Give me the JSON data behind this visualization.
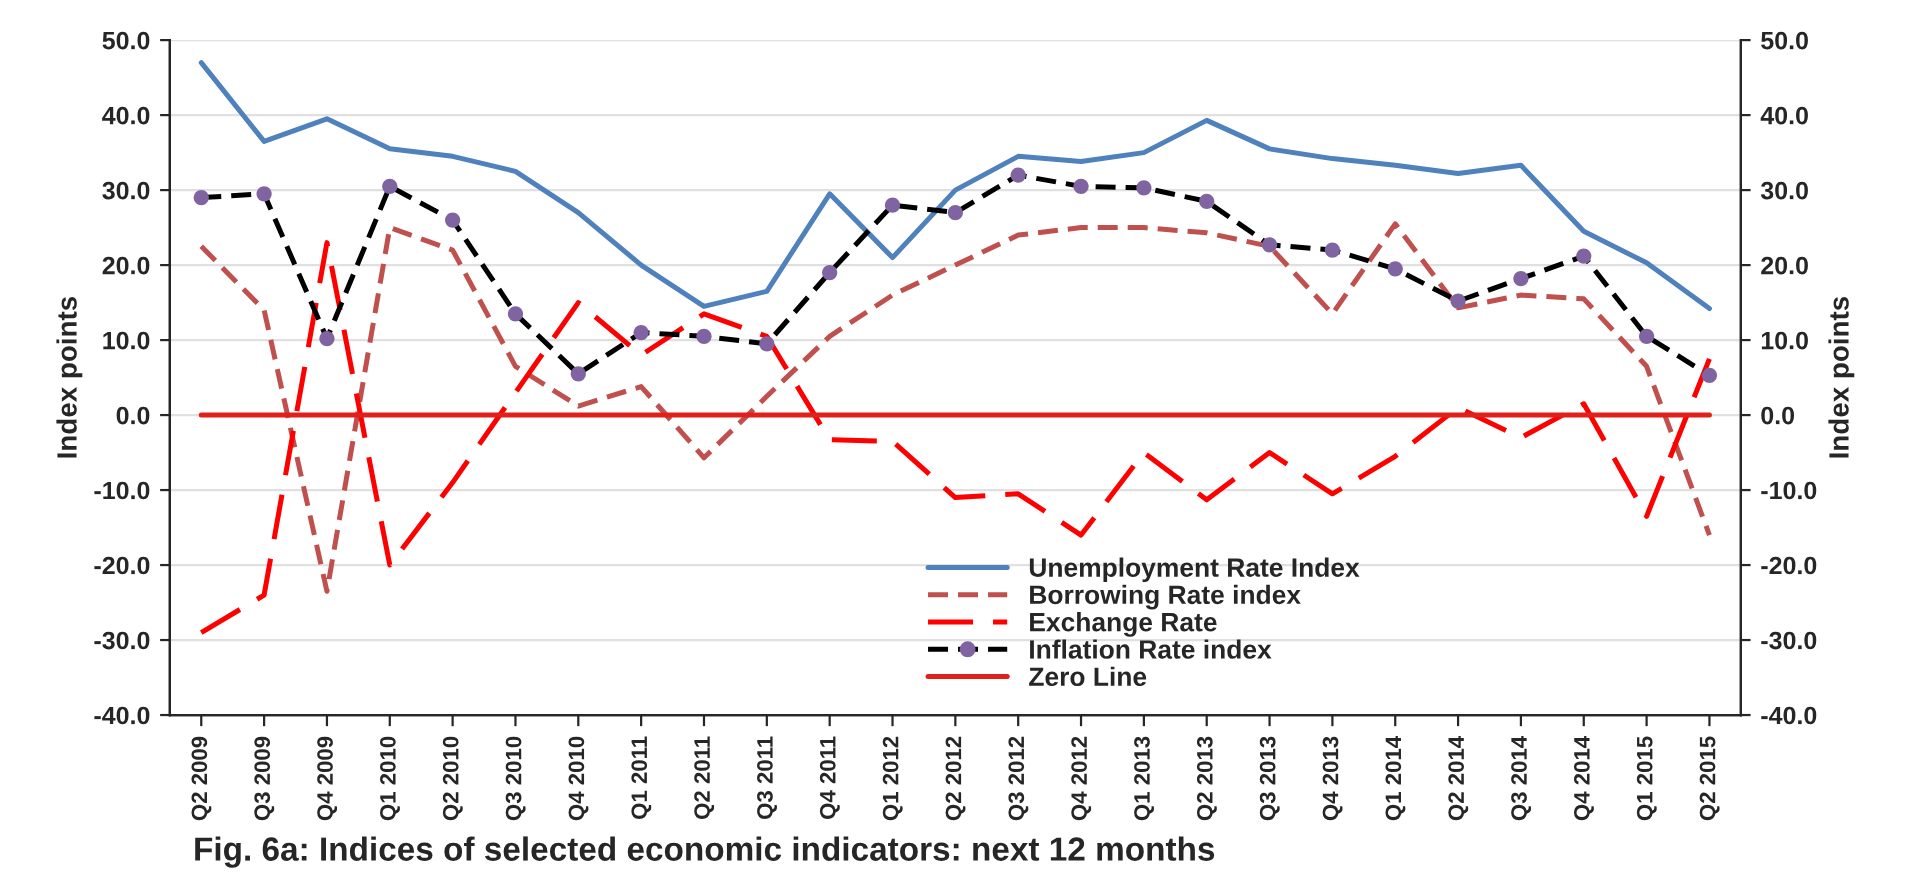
{
  "chart_data": {
    "type": "line",
    "categories": [
      "Q2 2009",
      "Q3 2009",
      "Q4 2009",
      "Q1 2010",
      "Q2 2010",
      "Q3 2010",
      "Q4 2010",
      "Q1 2011",
      "Q2 2011",
      "Q3 2011",
      "Q4 2011",
      "Q1 2012",
      "Q2 2012",
      "Q3 2012",
      "Q4 2012",
      "Q1 2013",
      "Q2 2013",
      "Q3 2013",
      "Q4 2013",
      "Q1 2014",
      "Q2 2014",
      "Q3 2014",
      "Q4 2014",
      "Q1 2015",
      "Q2 2015"
    ],
    "series": [
      {
        "name": "Unemployment Rate Index",
        "color": "#4f81bd",
        "line_style": "solid",
        "marker": "none",
        "values": [
          47,
          36.5,
          39.5,
          35.5,
          34.5,
          32.5,
          27,
          20,
          14.5,
          16.5,
          29.5,
          21,
          30,
          34.5,
          33.8,
          35,
          39.3,
          35.5,
          34.2,
          33.3,
          32.2,
          33.3,
          24.5,
          20.3,
          14.2
        ]
      },
      {
        "name": "Borrowing Rate index",
        "color": "#c0504d",
        "line_style": "dashed",
        "marker": "none",
        "values": [
          22.5,
          14,
          -23.5,
          25,
          22,
          6.5,
          1.2,
          3.8,
          -5.7,
          2.5,
          10.5,
          16,
          20,
          24,
          25,
          25,
          24.3,
          22.5,
          13.5,
          25.5,
          14.3,
          16,
          15.5,
          6.5,
          -16
        ]
      },
      {
        "name": "Exchange Rate",
        "color": "#ff0000",
        "line_style": "longdash",
        "marker": "none",
        "values": [
          -29,
          -24,
          23,
          -20,
          -9,
          3,
          15,
          8,
          13.5,
          10.5,
          -3.3,
          -3.5,
          -11,
          -10.5,
          -16,
          -5,
          -11.3,
          -5,
          -10.5,
          -5.5,
          1,
          -3,
          1.5,
          -13.5,
          7.5
        ]
      },
      {
        "name": "Inflation Rate index",
        "color": "#000000",
        "line_style": "dashed",
        "marker": "circle",
        "colors": [
          "#8064a2",
          "#8064a2",
          "#8064a2",
          "#8064a2",
          "#8064a2",
          "#8064a2",
          "#8064a2",
          "#8064a2",
          "#8064a2",
          "#8064a2",
          "#8064a2",
          "#8064a2",
          "#8064a2",
          "#8064a2",
          "#8064a2",
          "#8064a2",
          "#8064a2",
          "#8064a2",
          "#8064a2",
          "#8064a2",
          "#8064a2",
          "#8064a2",
          "#8064a2",
          "#8064a2",
          "#8064a2"
        ],
        "values": [
          29,
          29.5,
          10.2,
          30.5,
          26,
          13.5,
          5.5,
          11,
          10.5,
          9.5,
          19,
          28,
          27,
          32,
          30.5,
          30.3,
          28.5,
          22.7,
          22,
          19.5,
          15.2,
          18.2,
          21.2,
          10.5,
          5.3
        ]
      },
      {
        "name": "Zero Line",
        "color": "#e0201b",
        "line_style": "solid",
        "marker": "none",
        "values": [
          0,
          0,
          0,
          0,
          0,
          0,
          0,
          0,
          0,
          0,
          0,
          0,
          0,
          0,
          0,
          0,
          0,
          0,
          0,
          0,
          0,
          0,
          0,
          0,
          0
        ]
      }
    ],
    "ylabel": "Index points",
    "y2label": "Index points",
    "ylim": [
      -40,
      50
    ],
    "yticks": [
      {
        "value": -40,
        "label": "-40.0"
      },
      {
        "value": -30,
        "label": "-30.0"
      },
      {
        "value": -20,
        "label": "-20.0"
      },
      {
        "value": -10,
        "label": "-10.0"
      },
      {
        "value": 0,
        "label": "0.0"
      },
      {
        "value": 10,
        "label": "10.0"
      },
      {
        "value": 20,
        "label": "20.0"
      },
      {
        "value": 30,
        "label": "30.0"
      },
      {
        "value": 40,
        "label": "40.0"
      },
      {
        "value": 50,
        "label": "50.0"
      }
    ],
    "y2lim": [
      -40,
      50
    ],
    "y2ticks": [
      {
        "value": -40,
        "label": "-40.0"
      },
      {
        "value": -30,
        "label": "-30.0"
      },
      {
        "value": -20,
        "label": "-20.0"
      },
      {
        "value": -10,
        "label": "-10.0"
      },
      {
        "value": 0,
        "label": "0.0"
      },
      {
        "value": 10,
        "label": "10.0"
      },
      {
        "value": 20,
        "label": "20.0"
      },
      {
        "value": 30,
        "label": "30.0"
      },
      {
        "value": 40,
        "label": "40.0"
      },
      {
        "value": 50,
        "label": "50.0"
      }
    ],
    "grid": "y",
    "legend": "bottom",
    "annotations": [
      "Fig. 6a: Indices of selected economic indicators: next 12 months"
    ]
  }
}
